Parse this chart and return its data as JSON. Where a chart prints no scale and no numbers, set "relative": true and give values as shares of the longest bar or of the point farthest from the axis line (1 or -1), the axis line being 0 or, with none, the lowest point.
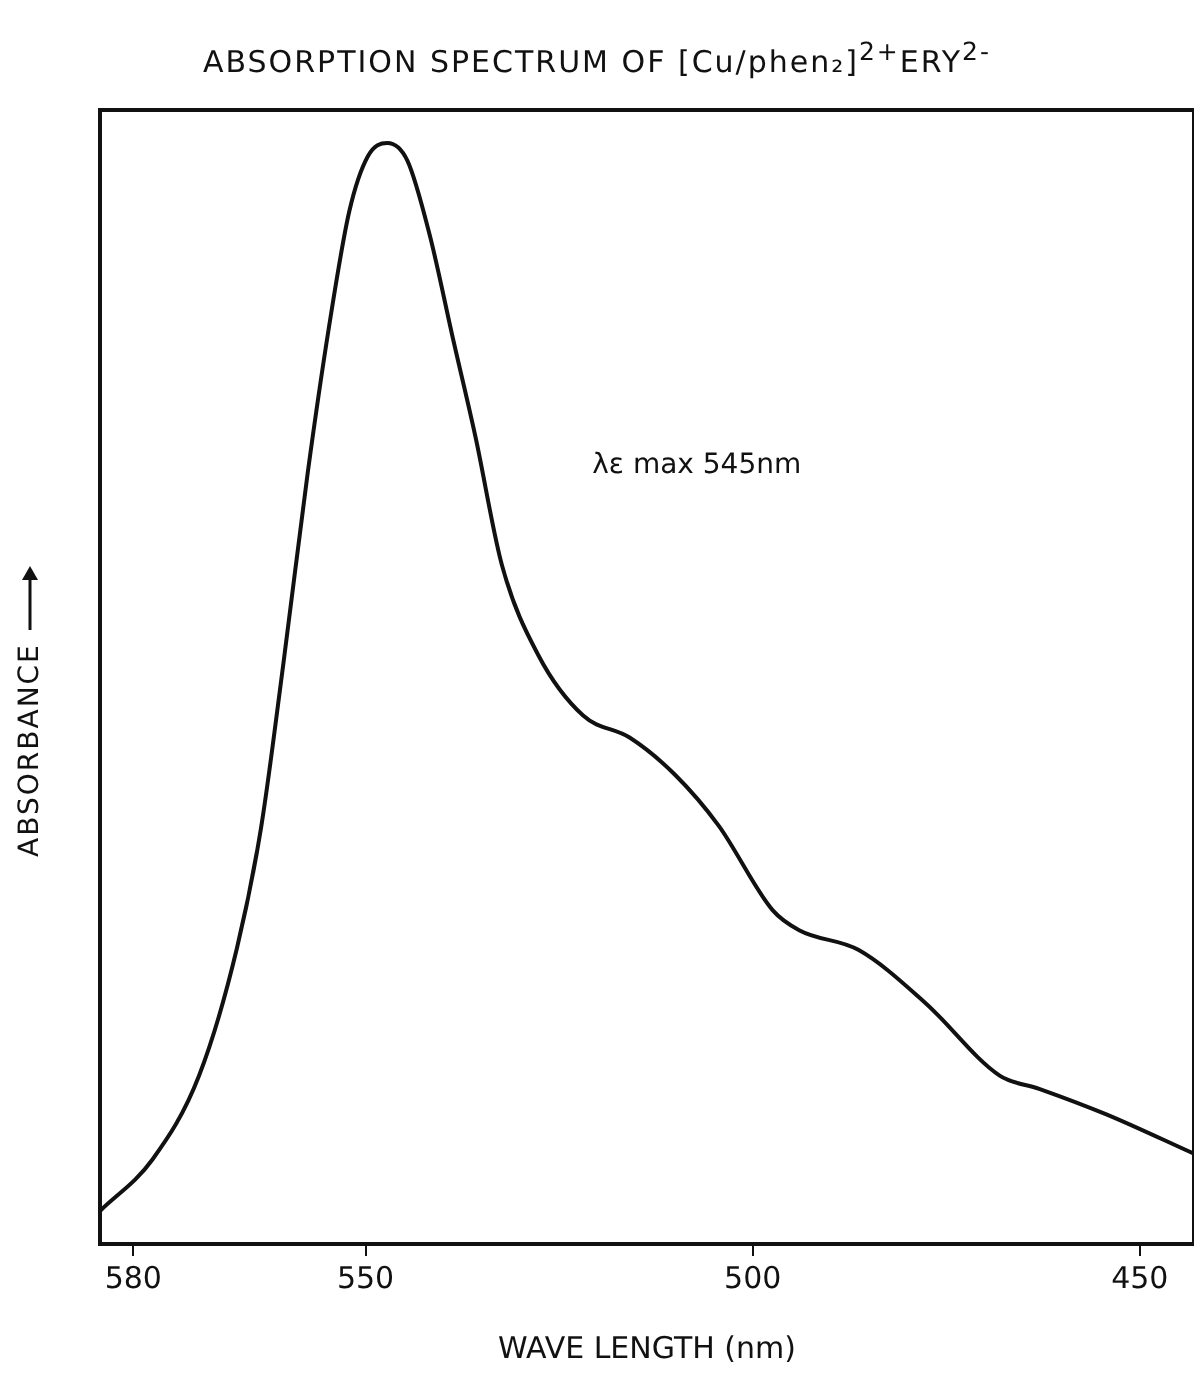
{
  "chart_data": {
    "type": "line",
    "title": "ABSORPTION SPECTRUM OF [Cu/phen₂]$^{2+}$ERY$^{2-}$",
    "xlabel": "WAVE LENGTH (nm)",
    "ylabel": "ABSORBANCE",
    "relative": true,
    "xlim": [
      584.3,
      443
    ],
    "xticks": [
      580,
      550,
      500,
      450
    ],
    "annotations": [
      "λε max 545nm"
    ],
    "marker": "none",
    "line_style": "solid",
    "x": [
      584.3,
      577.5,
      571.5,
      566.6,
      563.5,
      560.6,
      557.5,
      554.7,
      552.1,
      549.7,
      547.2,
      544.6,
      541.7,
      538.7,
      535.8,
      532.4,
      527.7,
      521.9,
      515.9,
      510.0,
      504.4,
      497.4,
      494.0,
      486.3,
      477.7,
      468.1,
      463.0,
      454.4,
      443.0
    ],
    "series": [
      {
        "color": "#111111",
        "values": [
          0.03,
          0.077,
          0.153,
          0.269,
          0.378,
          0.528,
          0.699,
          0.834,
          0.938,
          0.988,
          1,
          0.984,
          0.916,
          0.822,
          0.733,
          0.617,
          0.535,
          0.48,
          0.46,
          0.426,
          0.38,
          0.303,
          0.285,
          0.267,
          0.219,
          0.153,
          0.141,
          0.118,
          0.082
        ]
      }
    ]
  }
}
